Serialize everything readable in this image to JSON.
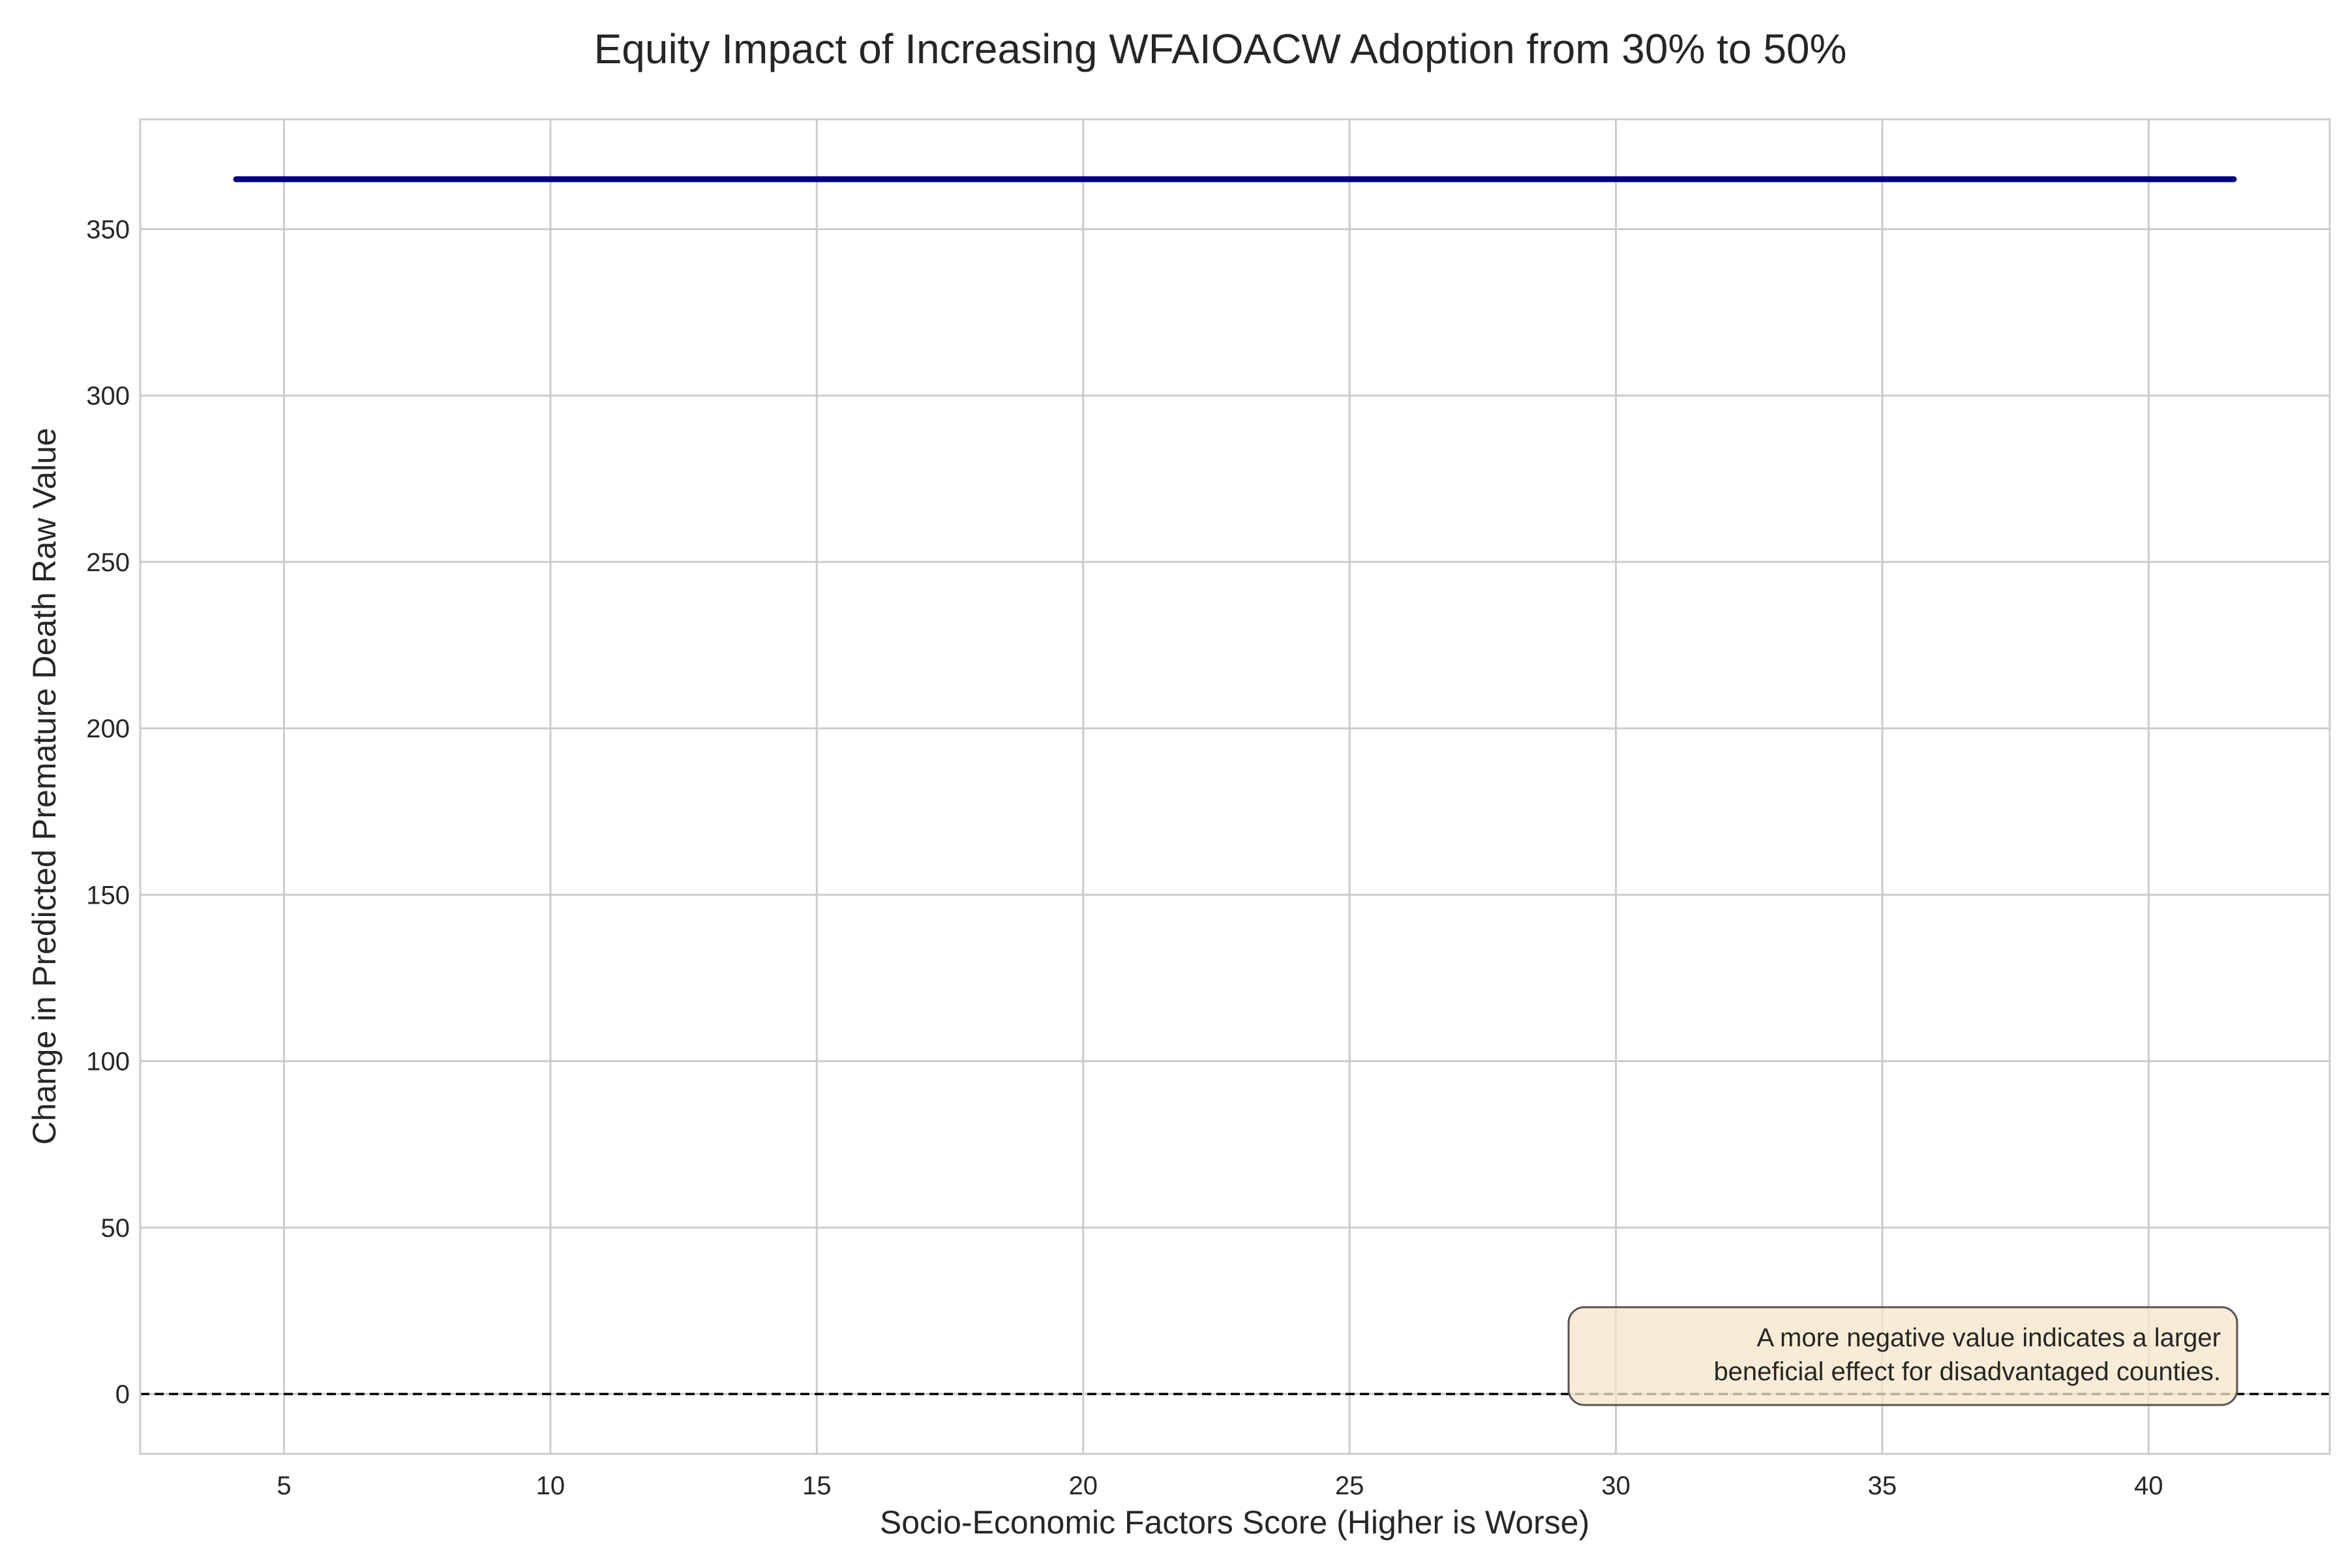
{
  "chart_data": {
    "type": "line",
    "title": "Equity Impact of Increasing WFAIOACW Adoption from 30% to 50%",
    "xlabel": "Socio-Economic Factors Score (Higher is Worse)",
    "ylabel": "Change in Predicted Premature Death Raw Value",
    "xlim": [
      2.3,
      43.4
    ],
    "ylim": [
      -18,
      383
    ],
    "x_ticks": [
      5,
      10,
      15,
      20,
      25,
      30,
      35,
      40
    ],
    "y_ticks": [
      0,
      50,
      100,
      150,
      200,
      250,
      300,
      350
    ],
    "grid": true,
    "series": [
      {
        "x": [
          4.1,
          41.6
        ],
        "y": [
          365,
          365
        ],
        "color": "#000080"
      }
    ],
    "reference_line": {
      "y": 0,
      "style": "dashed",
      "color": "#000000"
    },
    "annotation": {
      "lines": [
        "A more negative value indicates a larger",
        "beneficial effect for disadvantaged counties."
      ],
      "placement": "bottom-right",
      "background": "#f5e6c8"
    }
  }
}
